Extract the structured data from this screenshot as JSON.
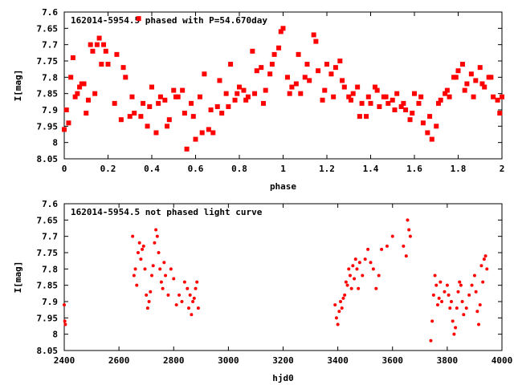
{
  "colors": {
    "points": "#ff0000",
    "axes": "#000000",
    "background": "#ffffff"
  },
  "chart_data": [
    {
      "type": "scatter",
      "title": "162014-5954.5 phased with P=54.670day",
      "xlabel": "phase",
      "ylabel": "I[mag]",
      "xlim": [
        0,
        2
      ],
      "ylim": [
        8.05,
        7.6
      ],
      "y_inverted": true,
      "xticks": [
        "0",
        "0.2",
        "0.4",
        "0.6",
        "0.8",
        "1",
        "1.2",
        "1.4",
        "1.6",
        "1.8",
        "2"
      ],
      "yticks": [
        "7.6",
        "7.65",
        "7.7",
        "7.75",
        "7.8",
        "7.85",
        "7.9",
        "7.95",
        "8",
        "8.05"
      ],
      "grid": false,
      "series": [
        {
          "x": [
            0.0,
            0.02,
            0.04,
            0.06,
            0.08,
            0.1,
            0.12,
            0.14,
            0.16,
            0.18,
            0.2,
            0.24,
            0.26,
            0.28,
            0.3,
            0.32,
            0.34,
            0.36,
            0.38,
            0.4,
            0.42,
            0.44,
            0.46,
            0.48,
            0.5,
            0.52,
            0.54,
            0.56,
            0.58,
            0.6,
            0.62,
            0.64,
            0.66,
            0.68,
            0.7,
            0.72,
            0.74,
            0.76,
            0.78,
            0.8,
            0.82,
            0.84,
            0.86,
            0.88,
            0.9,
            0.92,
            0.94,
            0.96,
            0.98,
            1.0,
            1.02,
            1.04,
            1.06,
            1.08,
            1.1,
            1.12,
            1.14,
            1.16,
            1.18,
            1.2,
            1.22,
            1.24,
            1.26,
            1.28,
            1.3,
            1.32,
            1.34,
            1.36,
            1.38,
            1.4,
            1.42,
            1.44,
            1.46,
            1.48,
            1.5,
            1.52,
            1.54,
            1.56,
            1.58,
            1.6,
            1.62,
            1.64,
            1.66,
            1.68,
            1.7,
            1.72,
            1.74,
            1.76,
            1.78,
            1.8,
            1.82,
            1.84,
            1.86,
            1.88,
            1.9,
            1.92,
            1.94,
            1.96,
            1.98,
            2.0,
            0.01,
            0.03,
            0.05,
            0.07,
            0.09,
            0.11,
            0.13,
            0.15,
            0.17,
            0.19,
            0.23,
            0.27,
            0.31,
            0.35,
            0.39,
            0.43,
            0.47,
            0.51,
            0.55,
            0.59,
            0.63,
            0.67,
            0.71,
            0.75,
            0.79,
            0.83,
            0.87,
            0.91,
            0.95,
            0.99,
            1.03,
            1.07,
            1.11,
            1.15,
            1.19,
            1.23,
            1.27,
            1.31,
            1.35,
            1.39,
            1.43,
            1.47,
            1.51,
            1.55,
            1.59,
            1.63,
            1.67,
            1.71,
            1.75,
            1.79,
            1.83,
            1.87,
            1.91,
            1.95,
            1.99
          ],
          "y": [
            7.96,
            7.94,
            7.74,
            7.85,
            7.82,
            7.91,
            7.7,
            7.85,
            7.68,
            7.7,
            7.76,
            7.73,
            7.93,
            7.8,
            7.92,
            7.91,
            7.62,
            7.88,
            7.95,
            7.83,
            7.97,
            7.86,
            7.87,
            7.93,
            7.84,
            7.86,
            7.84,
            8.02,
            7.88,
            7.99,
            7.86,
            7.79,
            7.96,
            7.97,
            7.89,
            7.91,
            7.85,
            7.76,
            7.87,
            7.83,
            7.84,
            7.86,
            7.72,
            7.78,
            7.77,
            7.84,
            7.79,
            7.73,
            7.71,
            7.65,
            7.8,
            7.83,
            7.82,
            7.85,
            7.8,
            7.81,
            7.67,
            7.78,
            7.87,
            7.76,
            7.79,
            7.77,
            7.75,
            7.83,
            7.86,
            7.85,
            7.83,
            7.88,
            7.92,
            7.88,
            7.83,
            7.89,
            7.86,
            7.88,
            7.87,
            7.85,
            7.89,
            7.9,
            7.93,
            7.85,
            7.88,
            7.94,
            7.97,
            7.99,
            7.95,
            7.87,
            7.85,
            7.86,
            7.8,
            7.78,
            7.76,
            7.82,
            7.79,
            7.81,
            7.77,
            7.83,
            7.8,
            7.86,
            7.87,
            7.86,
            7.9,
            7.8,
            7.86,
            7.83,
            7.82,
            7.87,
            7.72,
            7.7,
            7.76,
            7.72,
            7.88,
            7.77,
            7.86,
            7.92,
            7.89,
            7.88,
            7.95,
            7.86,
            7.91,
            7.92,
            7.97,
            7.9,
            7.81,
            7.89,
            7.85,
            7.87,
            7.85,
            7.88,
            7.76,
            7.66,
            7.85,
            7.73,
            7.76,
            7.69,
            7.84,
            7.86,
            7.81,
            7.87,
            7.92,
            7.86,
            7.84,
            7.86,
            7.9,
            7.88,
            7.91,
            7.86,
            7.92,
            7.88,
            7.84,
            7.8,
            7.84,
            7.86,
            7.82,
            7.8,
            7.91
          ]
        }
      ]
    },
    {
      "type": "scatter",
      "title": "162014-5954.5 not phased light curve",
      "xlabel": "hjd0",
      "ylabel": "I[mag]",
      "xlim": [
        2400,
        4000
      ],
      "ylim": [
        8.05,
        7.6
      ],
      "y_inverted": true,
      "xticks": [
        "2400",
        "2600",
        "2800",
        "3000",
        "3200",
        "3400",
        "3600",
        "3800",
        "4000"
      ],
      "yticks": [
        "7.6",
        "7.65",
        "7.7",
        "7.75",
        "7.8",
        "7.85",
        "7.9",
        "7.95",
        "8",
        "8.05"
      ],
      "grid": false,
      "series": [
        {
          "x": [
            2400,
            2402,
            2404,
            2650,
            2655,
            2660,
            2665,
            2670,
            2675,
            2680,
            2685,
            2690,
            2695,
            2700,
            2705,
            2710,
            2715,
            2720,
            2725,
            2730,
            2735,
            2740,
            2745,
            2750,
            2755,
            2760,
            2765,
            2770,
            2780,
            2790,
            2800,
            2810,
            2820,
            2830,
            2840,
            2850,
            2855,
            2860,
            2865,
            2870,
            2875,
            2880,
            2885,
            2890,
            3390,
            3395,
            3400,
            3405,
            3410,
            3415,
            3420,
            3425,
            3430,
            3435,
            3440,
            3445,
            3450,
            3455,
            3460,
            3465,
            3470,
            3475,
            3480,
            3490,
            3500,
            3510,
            3520,
            3530,
            3540,
            3550,
            3560,
            3580,
            3600,
            3640,
            3650,
            3655,
            3660,
            3665,
            3740,
            3745,
            3750,
            3755,
            3760,
            3765,
            3770,
            3775,
            3780,
            3790,
            3800,
            3805,
            3810,
            3815,
            3820,
            3825,
            3830,
            3835,
            3840,
            3845,
            3850,
            3855,
            3860,
            3870,
            3880,
            3890,
            3900,
            3905,
            3910,
            3915,
            3920,
            3925,
            3930,
            3935,
            3940,
            3945
          ],
          "y": [
            7.91,
            7.96,
            7.97,
            7.7,
            7.82,
            7.8,
            7.85,
            7.75,
            7.72,
            7.77,
            7.74,
            7.73,
            7.8,
            7.88,
            7.92,
            7.9,
            7.87,
            7.82,
            7.79,
            7.72,
            7.68,
            7.7,
            7.75,
            7.8,
            7.84,
            7.86,
            7.78,
            7.82,
            7.88,
            7.8,
            7.83,
            7.91,
            7.88,
            7.9,
            7.84,
            7.86,
            7.92,
            7.88,
            7.94,
            7.9,
            7.89,
            7.86,
            7.84,
            7.92,
            7.91,
            7.95,
            7.97,
            7.93,
            7.9,
            7.92,
            7.89,
            7.88,
            7.84,
            7.85,
            7.8,
            7.82,
            7.86,
            7.79,
            7.83,
            7.77,
            7.8,
            7.86,
            7.78,
            7.82,
            7.77,
            7.74,
            7.78,
            7.8,
            7.86,
            7.82,
            7.74,
            7.73,
            7.7,
            7.73,
            7.76,
            7.65,
            7.68,
            7.7,
            8.02,
            7.96,
            7.88,
            7.82,
            7.85,
            7.91,
            7.89,
            7.84,
            7.9,
            7.87,
            7.85,
            7.88,
            7.92,
            7.9,
            7.96,
            8.0,
            7.98,
            7.92,
            7.87,
            7.84,
            7.85,
            7.9,
            7.94,
            7.92,
            7.88,
            7.85,
            7.82,
            7.87,
            7.93,
            7.97,
            7.91,
            7.79,
            7.84,
            7.77,
            7.76,
            7.8
          ]
        }
      ]
    }
  ]
}
